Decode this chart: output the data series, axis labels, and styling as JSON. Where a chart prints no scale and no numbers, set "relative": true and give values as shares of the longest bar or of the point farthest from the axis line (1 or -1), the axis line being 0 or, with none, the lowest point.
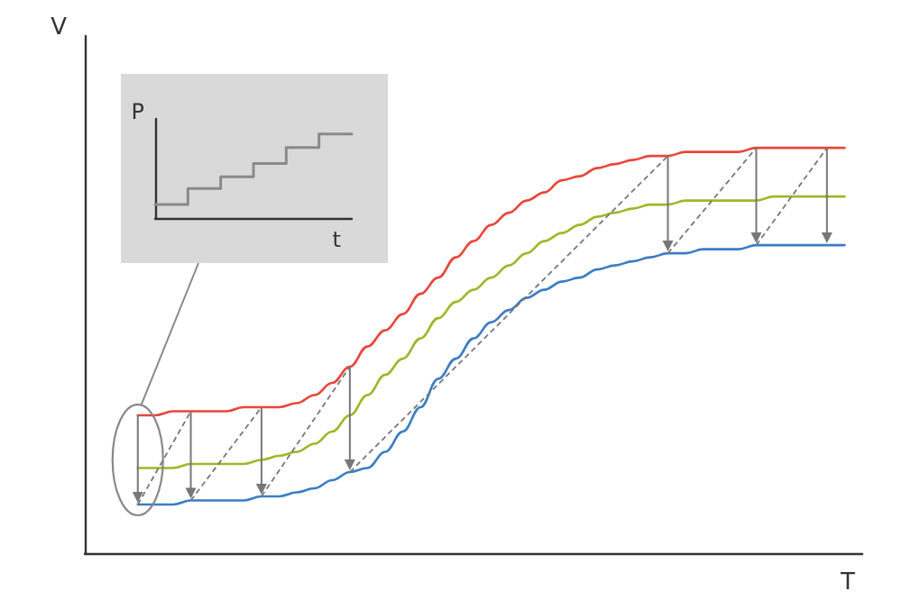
{
  "chart_data": [
    {
      "type": "line",
      "relative": true,
      "xlabel": "T",
      "ylabel": "V",
      "grid": false,
      "marker": "none",
      "line_style": "solid",
      "categories": [
        null,
        null,
        null,
        null,
        null,
        null,
        null,
        null,
        null,
        null,
        null,
        null,
        null,
        null,
        null,
        null,
        null,
        null,
        null,
        null,
        null,
        null,
        null,
        null,
        null,
        null,
        null,
        null,
        null,
        null,
        null,
        null,
        null,
        null,
        null,
        null,
        null,
        null,
        null,
        null,
        null,
        null,
        null,
        null,
        null
      ],
      "series": [
        {
          "color": "#e8463a",
          "values": [
            null,
            null,
            null,
            0.34,
            0.34,
            0.35,
            0.35,
            0.35,
            0.35,
            0.36,
            0.36,
            0.36,
            0.37,
            0.39,
            0.42,
            0.46,
            0.51,
            0.55,
            0.59,
            0.64,
            0.68,
            0.73,
            0.77,
            0.81,
            0.84,
            0.87,
            0.89,
            0.92,
            0.93,
            0.95,
            0.96,
            0.97,
            0.98,
            0.98,
            0.99,
            0.99,
            0.99,
            0.99,
            1,
            1,
            1,
            1,
            1,
            1,
            null
          ]
        },
        {
          "color": "#9cb82a",
          "values": [
            null,
            null,
            null,
            0.21,
            0.21,
            0.21,
            0.22,
            0.22,
            0.22,
            0.22,
            0.23,
            0.24,
            0.25,
            0.27,
            0.3,
            0.34,
            0.39,
            0.44,
            0.48,
            0.53,
            0.58,
            0.62,
            0.65,
            0.68,
            0.71,
            0.74,
            0.77,
            0.79,
            0.81,
            0.83,
            0.84,
            0.85,
            0.86,
            0.86,
            0.87,
            0.87,
            0.87,
            0.87,
            0.87,
            0.88,
            0.88,
            0.88,
            0.88,
            0.88,
            null
          ]
        },
        {
          "color": "#3c7dc4",
          "values": [
            null,
            null,
            null,
            0.12,
            0.12,
            0.12,
            0.13,
            0.13,
            0.13,
            0.13,
            0.14,
            0.14,
            0.15,
            0.16,
            0.18,
            0.2,
            0.21,
            0.25,
            0.3,
            0.36,
            0.43,
            0.48,
            0.53,
            0.57,
            0.6,
            0.63,
            0.65,
            0.67,
            0.68,
            0.7,
            0.71,
            0.72,
            0.73,
            0.74,
            0.74,
            0.75,
            0.75,
            0.75,
            0.76,
            0.76,
            0.76,
            0.76,
            0.76,
            0.76,
            null
          ]
        }
      ]
    },
    {
      "type": "step",
      "relative": true,
      "xlabel": "t",
      "ylabel": "P",
      "grid": false,
      "marker": "none",
      "categories": [
        null,
        null,
        null,
        null,
        null,
        null,
        null
      ],
      "series": [
        {
          "color": "#8a8a8a",
          "values": [
            0.16,
            0.35,
            0.49,
            0.65,
            0.84,
            1,
            1
          ]
        }
      ]
    }
  ]
}
